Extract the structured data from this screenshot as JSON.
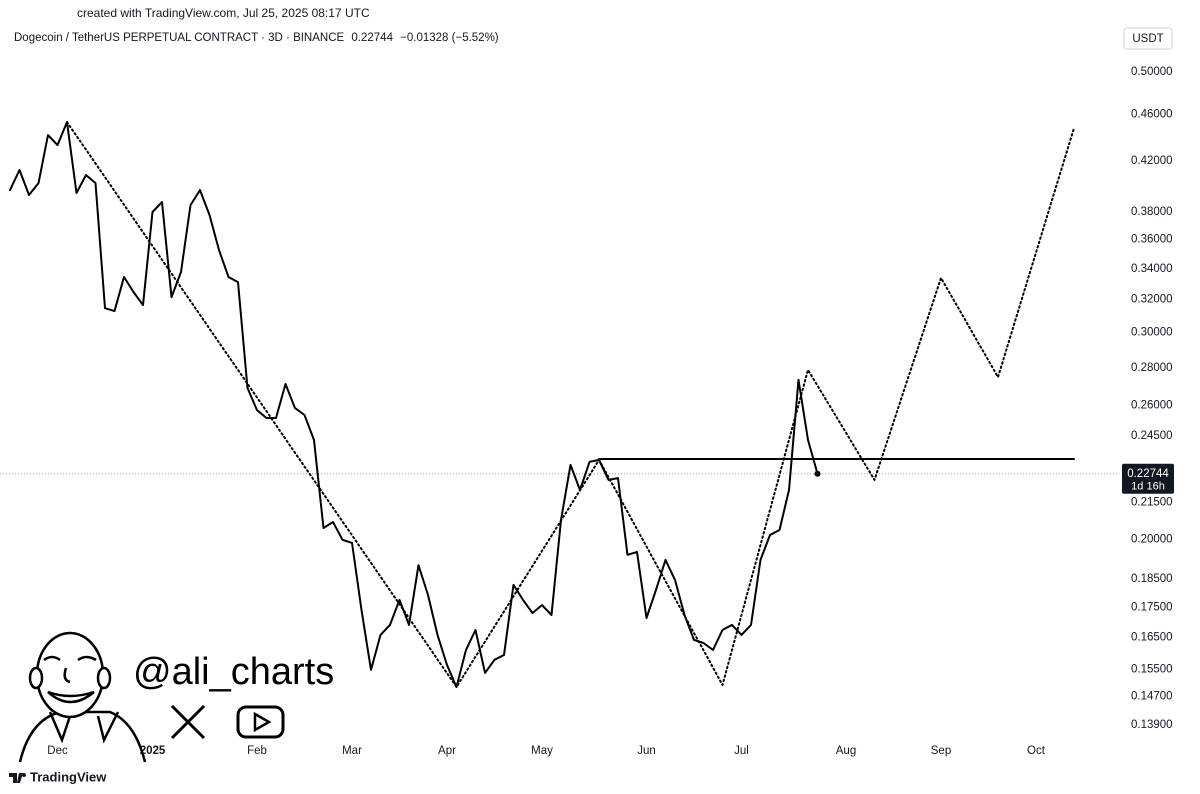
{
  "created": "created with TradingView.com, Jul 25, 2025 08:17 UTC",
  "brand": "TradingView",
  "watermark": "@ali_charts",
  "chart_data": {
    "type": "line",
    "title": "Dogecoin / TetherUS PERPETUAL CONTRACT · 3D · BINANCE",
    "change": "−0.01328 (−5.52%)",
    "unit": "USDT",
    "last_price": 0.22744,
    "countdown": "1d 16h",
    "log": true,
    "grid": false,
    "ylim": [
      0.1344,
      0.543
    ],
    "yticks": [
      {
        "value": 0.5,
        "label": "0.50000"
      },
      {
        "value": 0.46,
        "label": "0.46000"
      },
      {
        "value": 0.42,
        "label": "0.42000"
      },
      {
        "value": 0.38,
        "label": "0.38000"
      },
      {
        "value": 0.36,
        "label": "0.36000"
      },
      {
        "value": 0.34,
        "label": "0.34000"
      },
      {
        "value": 0.32,
        "label": "0.32000"
      },
      {
        "value": 0.3,
        "label": "0.30000"
      },
      {
        "value": 0.28,
        "label": "0.28000"
      },
      {
        "value": 0.26,
        "label": "0.26000"
      },
      {
        "value": 0.245,
        "label": "0.24500"
      },
      {
        "value": 0.215,
        "label": "0.21500"
      },
      {
        "value": 0.2,
        "label": "0.20000"
      },
      {
        "value": 0.185,
        "label": "0.18500"
      },
      {
        "value": 0.175,
        "label": "0.17500"
      },
      {
        "value": 0.165,
        "label": "0.16500"
      },
      {
        "value": 0.155,
        "label": "0.15500"
      },
      {
        "value": 0.147,
        "label": "0.14700"
      },
      {
        "value": 0.139,
        "label": "0.13900"
      }
    ],
    "categories": [
      null,
      null,
      null,
      null,
      null,
      "Dec",
      null,
      null,
      null,
      null,
      null,
      null,
      null,
      null,
      null,
      "2025",
      null,
      null,
      null,
      null,
      null,
      null,
      null,
      null,
      null,
      null,
      "Feb",
      null,
      null,
      null,
      null,
      null,
      null,
      null,
      null,
      null,
      "Mar",
      null,
      null,
      null,
      null,
      null,
      null,
      null,
      null,
      null,
      "Apr",
      null,
      null,
      null,
      null,
      null,
      null,
      null,
      null,
      null,
      "May",
      null,
      null,
      null,
      null,
      null,
      null,
      null,
      null,
      null,
      null,
      "Jun",
      null,
      null,
      null,
      null,
      null,
      null,
      null,
      null,
      null,
      "Jul",
      null,
      null,
      null,
      null,
      null,
      null,
      null,
      null,
      null,
      null,
      "Aug",
      null,
      null,
      null,
      null,
      null,
      null,
      null,
      null,
      null,
      "Sep",
      null,
      null,
      null,
      null,
      null,
      null,
      null,
      null,
      null,
      "Oct",
      null,
      null,
      null,
      null
    ],
    "series": [
      {
        "color": "#000000",
        "style": "solid",
        "end_marker": true,
        "values": [
          0.3967,
          0.4126,
          0.3929,
          0.4022,
          0.4419,
          0.4333,
          0.4533,
          0.3944,
          0.4086,
          0.4022,
          0.3147,
          0.3129,
          0.3345,
          0.3248,
          0.3166,
          0.38,
          0.3875,
          0.3216,
          0.3378,
          0.3852,
          0.3967,
          0.3778,
          0.3527,
          0.3345,
          0.3312,
          0.2691,
          0.2577,
          0.2537,
          0.2537,
          0.2712,
          0.2587,
          0.2552,
          0.243,
          0.2045,
          0.2069,
          0.1998,
          0.1986,
          0.1741,
          0.1548,
          0.1658,
          0.1691,
          0.1776,
          0.1691,
          0.1901,
          0.1793,
          0.1658,
          0.1563,
          0.1497,
          0.161,
          0.1674,
          0.1539,
          0.1579,
          0.1594,
          0.1829,
          0.1776,
          0.1731,
          0.1758,
          0.1724,
          0.2077,
          0.2314,
          0.2203,
          0.2328,
          0.2337,
          0.2247,
          0.2255,
          0.194,
          0.1951,
          0.1714,
          0.1811,
          0.1921,
          0.1847,
          0.1724,
          0.1642,
          0.1632,
          0.161,
          0.1674,
          0.1691,
          0.1658,
          0.1691,
          0.1921,
          0.2017,
          0.2037,
          0.2203,
          0.2734,
          0.243,
          0.22744,
          null,
          null,
          null,
          null,
          null,
          null,
          null,
          null,
          null,
          null,
          null,
          null,
          null,
          null,
          null,
          null,
          null,
          null,
          null,
          null,
          null,
          null,
          null,
          null,
          null,
          null,
          null
        ]
      },
      {
        "color": "#000000",
        "style": "dotted",
        "values": [
          null,
          null,
          null,
          null,
          null,
          null,
          0.4533,
          0.4412,
          0.4295,
          0.418,
          0.4069,
          0.396,
          0.3855,
          0.3752,
          0.3652,
          0.3555,
          0.346,
          0.3368,
          0.3278,
          0.3191,
          0.3106,
          0.3023,
          0.2942,
          0.2864,
          0.2788,
          0.2713,
          0.2641,
          0.2571,
          0.2502,
          0.2435,
          0.237,
          0.2307,
          0.2246,
          0.2186,
          0.2128,
          0.2071,
          0.2016,
          0.1962,
          0.191,
          0.1859,
          0.1809,
          0.1761,
          0.1714,
          0.1668,
          0.1624,
          0.158,
          0.1538,
          0.1497,
          0.1542,
          0.1589,
          0.1636,
          0.1686,
          0.1736,
          0.1789,
          0.1843,
          0.1898,
          0.1955,
          0.2014,
          0.2075,
          0.2137,
          0.2202,
          0.2268,
          0.2337,
          0.2259,
          0.2184,
          0.2111,
          0.204,
          0.1972,
          0.1906,
          0.1843,
          0.1781,
          0.1722,
          0.1664,
          0.1609,
          0.1555,
          0.1503,
          0.161,
          0.1724,
          0.1847,
          0.1978,
          0.2119,
          0.2269,
          0.2431,
          0.2603,
          0.2788,
          0.2703,
          0.2621,
          0.2542,
          0.2465,
          0.239,
          0.2317,
          0.2247,
          0.2378,
          0.2516,
          0.2663,
          0.2818,
          0.2982,
          0.3156,
          0.3339,
          0.3233,
          0.313,
          0.303,
          0.2933,
          0.284,
          0.2749,
          0.2922,
          0.3106,
          0.3302,
          0.3509,
          0.373,
          0.3965,
          0.4215,
          0.448
        ]
      },
      {
        "color": "#000000",
        "style": "solid",
        "values": [
          null,
          null,
          null,
          null,
          null,
          null,
          null,
          null,
          null,
          null,
          null,
          null,
          null,
          null,
          null,
          null,
          null,
          null,
          null,
          null,
          null,
          null,
          null,
          null,
          null,
          null,
          null,
          null,
          null,
          null,
          null,
          null,
          null,
          null,
          null,
          null,
          null,
          null,
          null,
          null,
          null,
          null,
          null,
          null,
          null,
          null,
          null,
          null,
          null,
          null,
          null,
          null,
          null,
          null,
          null,
          null,
          null,
          null,
          null,
          null,
          null,
          null,
          0.2341,
          0.2341,
          0.2341,
          0.2341,
          0.2341,
          0.2341,
          0.2341,
          0.2341,
          0.2341,
          0.2341,
          0.2341,
          0.2341,
          0.2341,
          0.2341,
          0.2341,
          0.2341,
          0.2341,
          0.2341,
          0.2341,
          0.2341,
          0.2341,
          0.2341,
          0.2341,
          0.2341,
          0.2341,
          0.2341,
          0.2341,
          0.2341,
          0.2341,
          0.2341,
          0.2341,
          0.2341,
          0.2341,
          0.2341,
          0.2341,
          0.2341,
          0.2341,
          0.2341,
          0.2341,
          0.2341,
          0.2341,
          0.2341,
          0.2341,
          0.2341,
          0.2341,
          0.2341,
          0.2341,
          0.2341,
          0.2341,
          0.2341,
          0.2341
        ]
      }
    ]
  }
}
